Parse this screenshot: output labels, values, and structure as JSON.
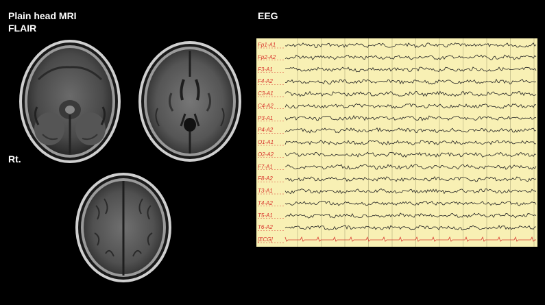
{
  "labels": {
    "mri_title": "Plain head MRI",
    "mri_subtitle": "FLAIR",
    "side": "Rt.",
    "eeg_title": "EEG"
  },
  "mri_images": [
    {
      "name": "mri-axial-posterior-fossa-image"
    },
    {
      "name": "mri-axial-basal-ganglia-image"
    },
    {
      "name": "mri-axial-vertex-image"
    }
  ],
  "eeg": {
    "channels": [
      "Fp1-A1",
      "Fp2-A2",
      "F3-A1",
      "F4-A2",
      "C3-A1",
      "C4-A2",
      "P3-A1",
      "P4-A2",
      "O1-A1",
      "O2-A2",
      "F7-A1",
      "F8-A2",
      "T3-A1",
      "T4-A2",
      "T5-A1",
      "T6-A2",
      "[ECG]"
    ],
    "colors": {
      "background": "#f8f0b4",
      "trace": "#202020",
      "grid": "#b0a97a",
      "label": "#d8342c"
    }
  }
}
